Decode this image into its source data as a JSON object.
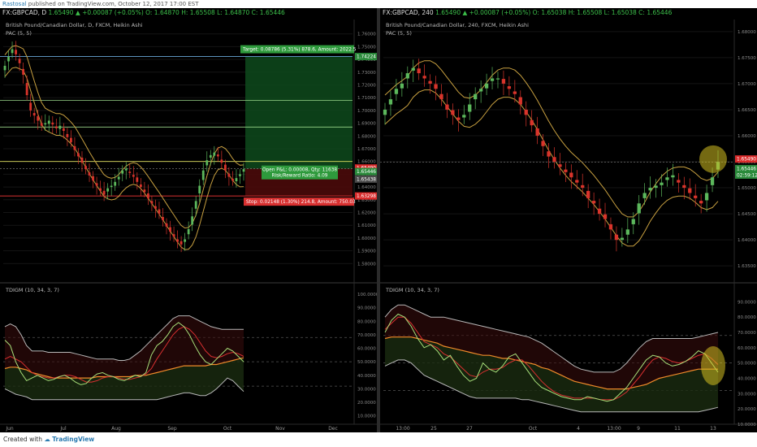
{
  "topbar": {
    "author": "Rastosal",
    "published": "published on TradingView.com, October 12, 2017 17:00 EST",
    "left_symbol": "FX:GBPCAD, D",
    "left_quote": "1.65490 ▲ +0.00087 (+0.05%) O: 1.64870 H: 1.65508 L: 1.64870 C: 1.65446",
    "right_symbol": "FX:GBPCAD, 240",
    "right_quote": "1.65490 ▲ +0.00087 (+0.05%) O: 1.65038 H: 1.65508 L: 1.65038 C: 1.65446"
  },
  "left": {
    "title": "British Pound/Canadian Dollar, D, FXCM, Heikin Ashi",
    "pac": "PAC (5, 5)",
    "indicator": "TDIGM (10, 34, 3, 7)",
    "target_label": "Target: 0.08786 (5.31%) 878.6, Amount: 2022.5",
    "stop_label": "Stop: 0.02148 (1.30%) 214.8, Amount: 750.03",
    "pnl_label": "Open P&L: 0.00008, Qty: 11638",
    "rr_label": "Risk/Reward Ratio: 4.09",
    "price_badges": [
      "1.74224",
      "1.65490",
      "1.65446",
      "1.65438",
      "1.63298"
    ],
    "x_labels": [
      "Jun",
      "Jul",
      "Aug",
      "Sep",
      "Oct",
      "Nov",
      "Dec"
    ]
  },
  "right": {
    "title": "British Pound/Canadian Dollar, 240, FXCM, Heikin Ashi",
    "pac": "PAC (5, 5)",
    "indicator": "TDIGM (10, 34, 3, 7)",
    "price_badges": [
      "1.65490",
      "1.65446",
      "02:59:12"
    ],
    "x_labels": [
      "13:00",
      "25",
      "27",
      "Oct",
      "4",
      "13:00",
      "9",
      "11",
      "13"
    ]
  },
  "footer": {
    "created_with": "Created with",
    "brand": "TradingView"
  },
  "colors": {
    "bull": "#5cb85c",
    "bear": "#d9342b",
    "pac": "#c8a040",
    "target_zone": "#0e4a1c",
    "stop_zone": "#4a0a0a",
    "rsi": "#a8e07a",
    "signal": "#d93030",
    "mid": "#f08a2a",
    "band": "#b8b8b8",
    "highlight": "#d4c020"
  },
  "chart_data": [
    {
      "type": "candlestick",
      "title": "British Pound/Canadian Dollar, D, FXCM, Heikin Ashi",
      "ylim": [
        1.57,
        1.77
      ],
      "y_ticks": [
        1.76,
        1.75,
        1.74,
        1.73,
        1.72,
        1.71,
        1.7,
        1.69,
        1.68,
        1.67,
        1.66,
        1.65,
        1.64,
        1.63,
        1.62,
        1.61,
        1.6,
        1.59,
        1.58
      ],
      "x_ticks": [
        "Jun",
        "Jul",
        "Aug",
        "Sep",
        "Oct",
        "Nov",
        "Dec"
      ],
      "close": [
        1.735,
        1.742,
        1.748,
        1.744,
        1.737,
        1.728,
        1.712,
        1.7,
        1.696,
        1.692,
        1.688,
        1.69,
        1.692,
        1.689,
        1.686,
        1.688,
        1.684,
        1.679,
        1.675,
        1.669,
        1.664,
        1.659,
        1.654,
        1.649,
        1.645,
        1.641,
        1.637,
        1.634,
        1.639,
        1.641,
        1.644,
        1.648,
        1.653,
        1.653,
        1.651,
        1.648,
        1.644,
        1.64,
        1.636,
        1.631,
        1.627,
        1.623,
        1.619,
        1.614,
        1.609,
        1.605,
        1.601,
        1.597,
        1.595,
        1.599,
        1.607,
        1.617,
        1.629,
        1.641,
        1.653,
        1.661,
        1.665,
        1.667,
        1.664,
        1.659,
        1.653,
        1.648,
        1.645,
        1.647,
        1.65,
        1.654
      ],
      "pac_levels": {
        "target": 1.74224,
        "entry": 1.65438,
        "stop": 1.63298,
        "current": 1.6549
      },
      "indicator": {
        "name": "TDIGM (10, 34, 3, 7)",
        "ylim": [
          5,
          100
        ],
        "y_ticks": [
          100,
          90,
          80,
          70,
          60,
          50,
          40,
          30,
          20,
          10
        ],
        "rsi": [
          66,
          62,
          50,
          42,
          36,
          38,
          40,
          38,
          36,
          37,
          39,
          40,
          38,
          35,
          33,
          34,
          38,
          41,
          42,
          40,
          39,
          37,
          36,
          38,
          40,
          39,
          42,
          55,
          62,
          65,
          70,
          76,
          79,
          76,
          70,
          62,
          55,
          50,
          48,
          52,
          56,
          60,
          58,
          54,
          50
        ],
        "signal": [
          52,
          54,
          52,
          50,
          46,
          42,
          40,
          39,
          38,
          38,
          39,
          40,
          40,
          39,
          37,
          35,
          35,
          36,
          38,
          39,
          39,
          38,
          37,
          37,
          38,
          39,
          41,
          45,
          52,
          58,
          64,
          70,
          74,
          76,
          74,
          70,
          64,
          58,
          54,
          53,
          54,
          56,
          57,
          56,
          54
        ],
        "mid": [
          45,
          46,
          46,
          45,
          44,
          42,
          41,
          40,
          39,
          38,
          38,
          38,
          38,
          38,
          38,
          38,
          38,
          39,
          39,
          39,
          39,
          39,
          39,
          39,
          40,
          40,
          40,
          41,
          42,
          43,
          44,
          45,
          46,
          47,
          47,
          47,
          47,
          47,
          48,
          48,
          49,
          50,
          51,
          52,
          53
        ],
        "upper": [
          76,
          78,
          76,
          70,
          62,
          58,
          58,
          58,
          57,
          57,
          57,
          57,
          57,
          56,
          55,
          54,
          53,
          52,
          52,
          52,
          52,
          51,
          51,
          52,
          55,
          58,
          62,
          66,
          70,
          74,
          78,
          82,
          84,
          84,
          84,
          82,
          80,
          78,
          76,
          75,
          74,
          74,
          74,
          74,
          74
        ],
        "lower": [
          30,
          28,
          26,
          25,
          24,
          22,
          22,
          22,
          22,
          22,
          22,
          22,
          22,
          22,
          22,
          22,
          22,
          22,
          22,
          22,
          22,
          22,
          22,
          22,
          22,
          22,
          22,
          22,
          22,
          23,
          24,
          25,
          26,
          27,
          27,
          26,
          25,
          25,
          27,
          30,
          34,
          38,
          36,
          32,
          28
        ]
      }
    },
    {
      "type": "candlestick",
      "title": "British Pound/Canadian Dollar, 240, FXCM, Heikin Ashi",
      "ylim": [
        1.633,
        1.682
      ],
      "y_ticks": [
        1.68,
        1.675,
        1.67,
        1.665,
        1.66,
        1.655,
        1.65,
        1.645,
        1.64,
        1.635
      ],
      "x_ticks": [
        "13:00",
        "25",
        "27",
        "Oct",
        "4",
        "13:00",
        "9",
        "11",
        "13"
      ],
      "close": [
        1.665,
        1.667,
        1.669,
        1.67,
        1.672,
        1.673,
        1.672,
        1.671,
        1.67,
        1.669,
        1.667,
        1.665,
        1.664,
        1.663,
        1.664,
        1.666,
        1.668,
        1.669,
        1.67,
        1.671,
        1.671,
        1.67,
        1.669,
        1.668,
        1.666,
        1.664,
        1.662,
        1.66,
        1.658,
        1.656,
        1.655,
        1.654,
        1.653,
        1.652,
        1.651,
        1.65,
        1.648,
        1.647,
        1.645,
        1.644,
        1.642,
        1.64,
        1.64,
        1.642,
        1.644,
        1.647,
        1.649,
        1.65,
        1.65,
        1.651,
        1.652,
        1.652,
        1.651,
        1.65,
        1.649,
        1.648,
        1.647,
        1.649,
        1.652,
        1.655
      ],
      "pac_levels": {
        "current": 1.6549
      },
      "indicator": {
        "name": "TDIGM (10, 34, 3, 7)",
        "ylim": [
          11,
          95
        ],
        "y_ticks": [
          90,
          80,
          70,
          60,
          50,
          40,
          30,
          20,
          10
        ],
        "rsi": [
          70,
          78,
          82,
          80,
          74,
          66,
          60,
          62,
          58,
          52,
          55,
          48,
          42,
          38,
          40,
          50,
          46,
          44,
          48,
          54,
          56,
          50,
          44,
          38,
          34,
          32,
          30,
          28,
          27,
          26,
          26,
          28,
          27,
          26,
          25,
          26,
          30,
          34,
          40,
          46,
          52,
          55,
          54,
          50,
          48,
          49,
          51,
          54,
          58,
          56,
          50,
          44
        ],
        "signal": [
          72,
          76,
          80,
          80,
          76,
          70,
          64,
          62,
          60,
          56,
          54,
          50,
          46,
          42,
          41,
          44,
          46,
          46,
          47,
          50,
          52,
          52,
          48,
          43,
          38,
          34,
          31,
          29,
          28,
          27,
          27,
          27,
          27,
          26,
          26,
          26,
          28,
          31,
          36,
          41,
          47,
          52,
          54,
          53,
          51,
          50,
          51,
          53,
          55,
          56,
          53,
          49
        ],
        "mid": [
          66,
          67,
          67,
          67,
          67,
          66,
          65,
          64,
          63,
          61,
          60,
          59,
          58,
          57,
          56,
          55,
          55,
          54,
          53,
          53,
          52,
          51,
          50,
          49,
          47,
          46,
          44,
          42,
          40,
          38,
          37,
          36,
          35,
          34,
          33,
          33,
          33,
          33,
          34,
          35,
          36,
          38,
          40,
          41,
          42,
          43,
          44,
          45,
          46,
          46,
          46,
          46
        ],
        "upper": [
          80,
          85,
          88,
          88,
          86,
          84,
          82,
          80,
          80,
          80,
          79,
          78,
          77,
          76,
          75,
          74,
          73,
          72,
          71,
          70,
          69,
          68,
          67,
          65,
          63,
          60,
          57,
          54,
          51,
          48,
          46,
          45,
          44,
          44,
          44,
          44,
          46,
          50,
          55,
          60,
          64,
          66,
          66,
          66,
          66,
          66,
          66,
          66,
          67,
          68,
          69,
          70
        ],
        "lower": [
          48,
          50,
          52,
          52,
          50,
          46,
          42,
          40,
          38,
          36,
          34,
          32,
          30,
          28,
          27,
          27,
          27,
          27,
          27,
          27,
          27,
          26,
          26,
          25,
          24,
          23,
          22,
          21,
          20,
          19,
          18,
          18,
          18,
          18,
          18,
          18,
          18,
          18,
          18,
          18,
          18,
          18,
          18,
          18,
          18,
          18,
          18,
          18,
          18,
          19,
          20,
          21
        ]
      }
    }
  ]
}
